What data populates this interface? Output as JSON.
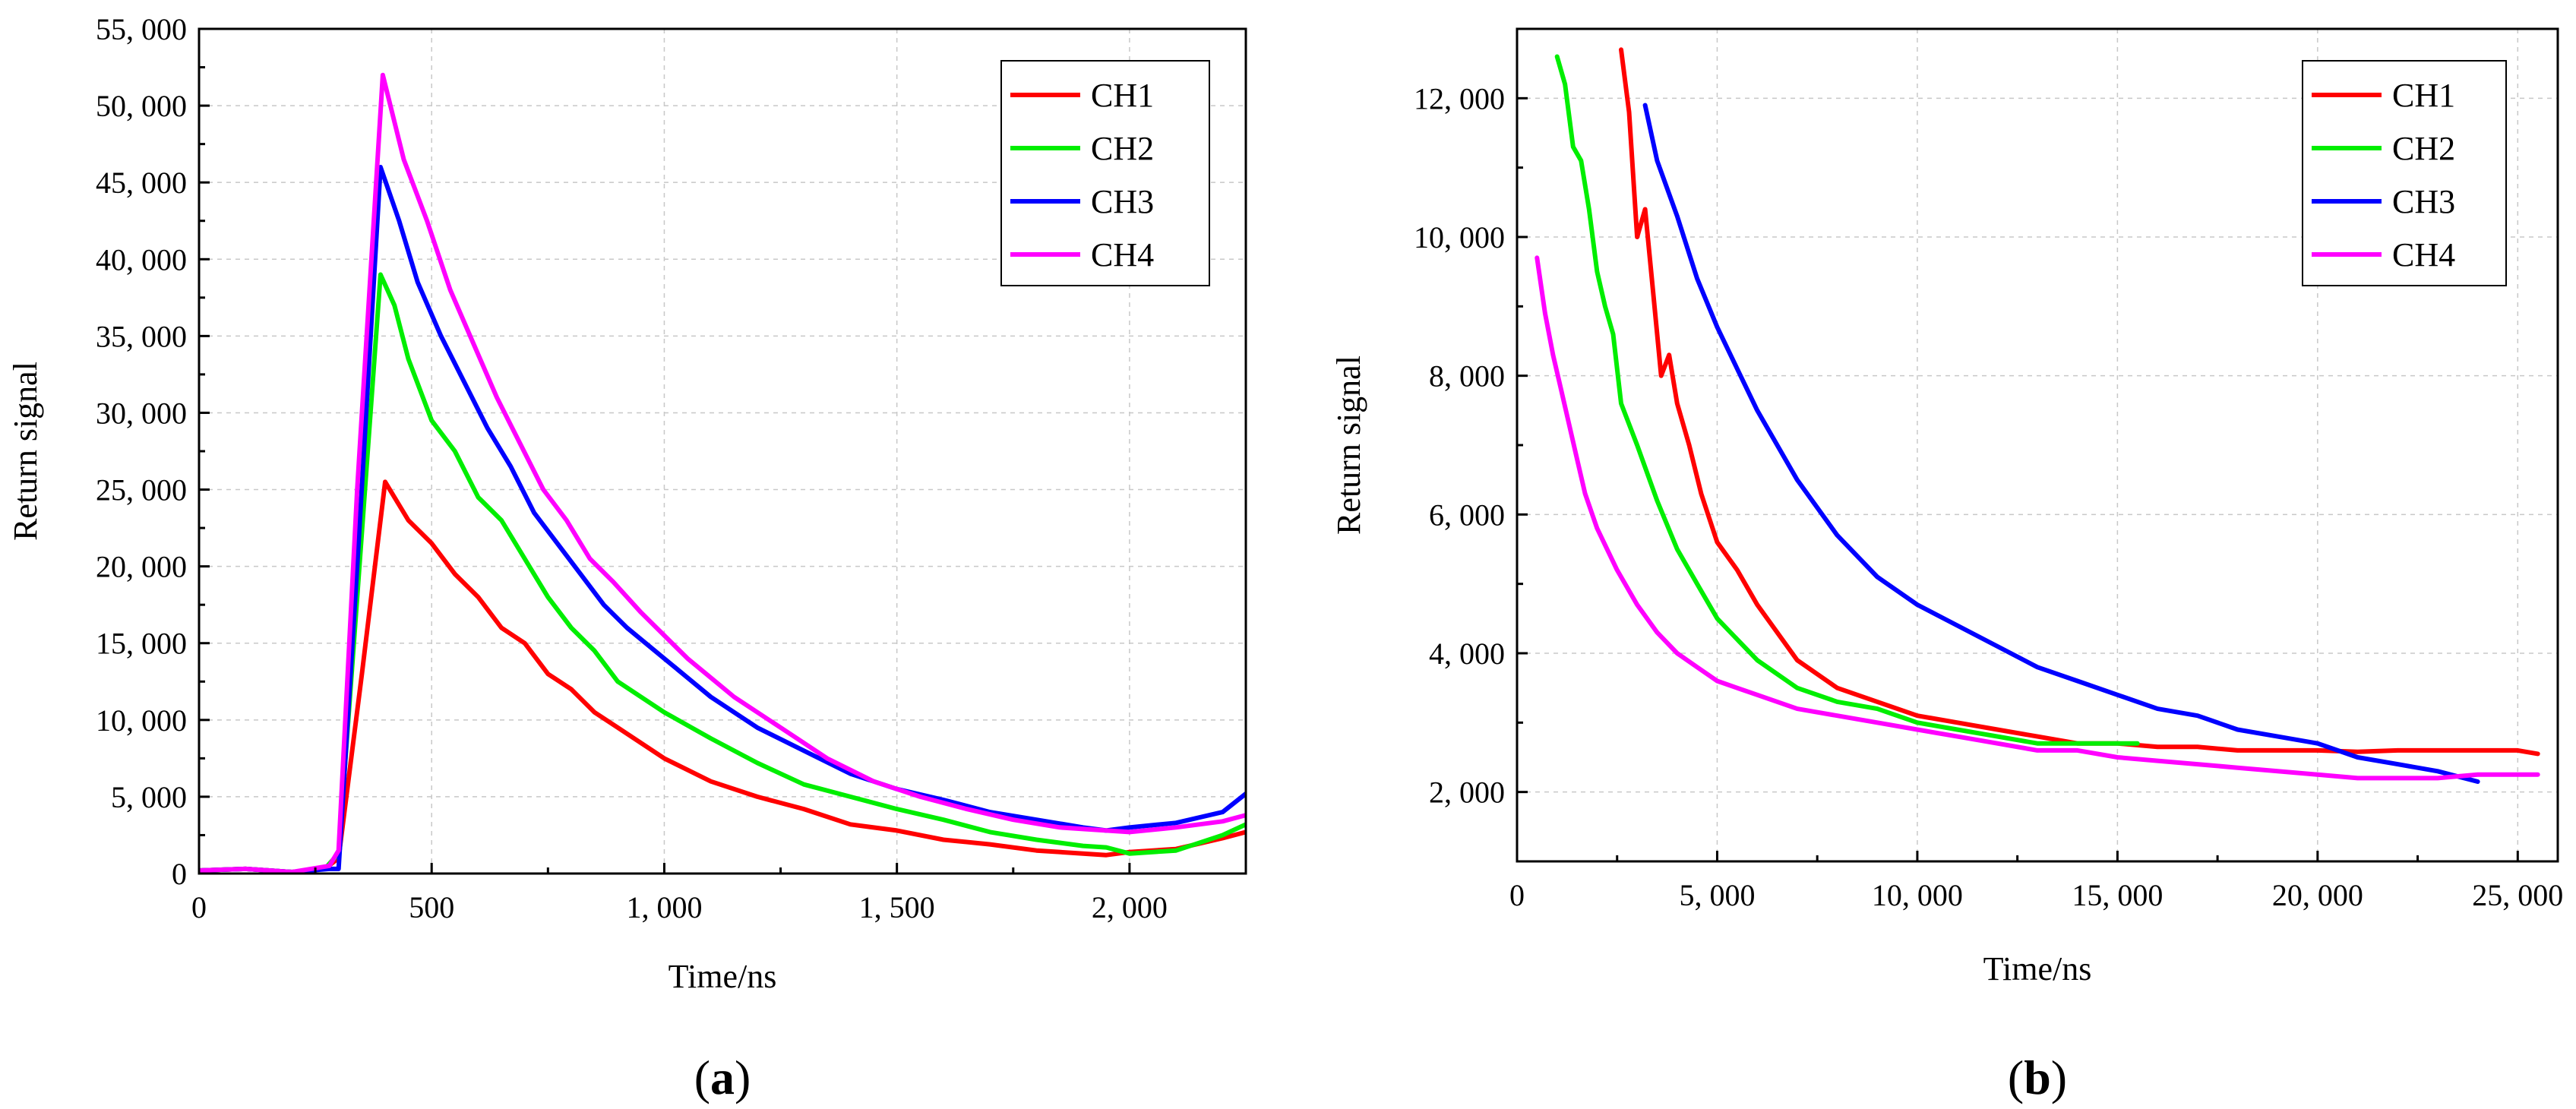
{
  "chart_data": [
    {
      "type": "line",
      "panel_label": "a",
      "title": "",
      "xlabel": "Time/ns",
      "ylabel": "Return signal",
      "xlim": [
        0,
        2250
      ],
      "ylim": [
        0,
        55000
      ],
      "xticks": [
        0,
        500,
        1000,
        1500,
        2000
      ],
      "xtick_labels": [
        "0",
        "500",
        "1, 000",
        "1, 500",
        "2, 000"
      ],
      "yticks": [
        0,
        5000,
        10000,
        15000,
        20000,
        25000,
        30000,
        35000,
        40000,
        45000,
        50000,
        55000
      ],
      "ytick_labels": [
        "0",
        "5, 000",
        "10, 000",
        "15, 000",
        "20, 000",
        "25, 000",
        "30, 000",
        "35, 000",
        "40, 000",
        "45, 000",
        "50, 000",
        "55, 000"
      ],
      "grid": true,
      "legend_position": "top-right",
      "series": [
        {
          "name": "CH1",
          "color": "#ff0000",
          "x": [
            0,
            100,
            200,
            270,
            300,
            350,
            400,
            450,
            500,
            550,
            600,
            650,
            700,
            750,
            800,
            850,
            900,
            1000,
            1100,
            1200,
            1300,
            1400,
            1500,
            1600,
            1700,
            1800,
            1900,
            1950,
            2000,
            2100,
            2200,
            2250
          ],
          "y": [
            200,
            300,
            100,
            300,
            1000,
            13000,
            25500,
            23000,
            21500,
            19500,
            18000,
            16000,
            15000,
            13000,
            12000,
            10500,
            9500,
            7500,
            6000,
            5000,
            4200,
            3200,
            2800,
            2200,
            1900,
            1500,
            1300,
            1200,
            1400,
            1600,
            2300,
            2700
          ]
        },
        {
          "name": "CH2",
          "color": "#00ee00",
          "x": [
            0,
            100,
            200,
            270,
            300,
            340,
            390,
            420,
            450,
            500,
            550,
            600,
            650,
            700,
            750,
            800,
            850,
            900,
            1000,
            1100,
            1200,
            1300,
            1400,
            1500,
            1600,
            1700,
            1800,
            1900,
            1950,
            2000,
            2100,
            2200,
            2250
          ],
          "y": [
            200,
            300,
            100,
            300,
            1300,
            18000,
            39000,
            37000,
            33500,
            29500,
            27500,
            24500,
            23000,
            20500,
            18000,
            16000,
            14500,
            12500,
            10500,
            8800,
            7200,
            5800,
            5000,
            4200,
            3500,
            2700,
            2200,
            1800,
            1700,
            1300,
            1500,
            2500,
            3200
          ]
        },
        {
          "name": "CH3",
          "color": "#0000ff",
          "x": [
            0,
            100,
            200,
            280,
            300,
            340,
            390,
            430,
            470,
            520,
            570,
            620,
            670,
            720,
            770,
            820,
            870,
            920,
            1000,
            1100,
            1200,
            1300,
            1400,
            1500,
            1600,
            1700,
            1800,
            1900,
            1950,
            2000,
            2100,
            2200,
            2250
          ],
          "y": [
            200,
            300,
            100,
            300,
            300,
            20000,
            46000,
            42500,
            38500,
            35000,
            32000,
            29000,
            26500,
            23500,
            21500,
            19500,
            17500,
            16000,
            14000,
            11500,
            9500,
            8000,
            6500,
            5500,
            4800,
            4000,
            3500,
            3000,
            2800,
            3000,
            3300,
            4000,
            5200
          ]
        },
        {
          "name": "CH4",
          "color": "#ff00ff",
          "x": [
            0,
            100,
            200,
            280,
            300,
            340,
            395,
            440,
            490,
            540,
            590,
            640,
            690,
            740,
            790,
            840,
            890,
            950,
            1050,
            1150,
            1250,
            1350,
            1450,
            1550,
            1650,
            1750,
            1850,
            1950,
            2000,
            2100,
            2200,
            2250
          ],
          "y": [
            200,
            300,
            100,
            500,
            1500,
            25000,
            52000,
            46500,
            42500,
            38000,
            34500,
            31000,
            28000,
            25000,
            23000,
            20500,
            19000,
            17000,
            14000,
            11500,
            9500,
            7500,
            6000,
            5000,
            4200,
            3500,
            3000,
            2800,
            2700,
            3000,
            3400,
            3800
          ]
        }
      ]
    },
    {
      "type": "line",
      "panel_label": "b",
      "title": "",
      "xlabel": "Time/ns",
      "ylabel": "Return signal",
      "xlim": [
        0,
        26000
      ],
      "ylim": [
        1000,
        13000
      ],
      "xticks": [
        0,
        5000,
        10000,
        15000,
        20000,
        25000
      ],
      "xtick_labels": [
        "0",
        "5, 000",
        "10, 000",
        "15, 000",
        "20, 000",
        "25, 000"
      ],
      "yticks": [
        2000,
        4000,
        6000,
        8000,
        10000,
        12000
      ],
      "ytick_labels": [
        "2, 000",
        "4, 000",
        "6, 000",
        "8, 000",
        "10, 000",
        "12, 000"
      ],
      "grid": true,
      "legend_position": "top-right",
      "series": [
        {
          "name": "CH1",
          "color": "#ff0000",
          "x": [
            2600,
            2800,
            3000,
            3200,
            3400,
            3600,
            3800,
            4000,
            4300,
            4600,
            5000,
            5500,
            6000,
            7000,
            8000,
            9000,
            9500,
            10000,
            11000,
            12000,
            13000,
            14000,
            15000,
            16000,
            17000,
            18000,
            19000,
            20000,
            21000,
            22000,
            23000,
            24000,
            25000,
            25500
          ],
          "y": [
            12700,
            11800,
            10000,
            10400,
            9200,
            8000,
            8300,
            7600,
            7000,
            6300,
            5600,
            5200,
            4700,
            3900,
            3500,
            3300,
            3200,
            3100,
            3000,
            2900,
            2800,
            2700,
            2700,
            2650,
            2650,
            2600,
            2600,
            2600,
            2580,
            2600,
            2600,
            2600,
            2600,
            2550
          ]
        },
        {
          "name": "CH2",
          "color": "#00ee00",
          "x": [
            1000,
            1200,
            1400,
            1600,
            1800,
            2000,
            2200,
            2400,
            2600,
            3000,
            3500,
            4000,
            4500,
            5000,
            5500,
            6000,
            7000,
            8000,
            9000,
            10000,
            11000,
            12000,
            13000,
            14000,
            15000,
            15500
          ],
          "y": [
            12600,
            12200,
            11300,
            11100,
            10400,
            9500,
            9000,
            8600,
            7600,
            7000,
            6200,
            5500,
            5000,
            4500,
            4200,
            3900,
            3500,
            3300,
            3200,
            3000,
            2900,
            2800,
            2700,
            2700,
            2700,
            2700
          ]
        },
        {
          "name": "CH3",
          "color": "#0000ff",
          "x": [
            3200,
            3500,
            4000,
            4500,
            5000,
            5500,
            6000,
            7000,
            8000,
            9000,
            10000,
            11000,
            12000,
            13000,
            14000,
            15000,
            16000,
            17000,
            18000,
            19000,
            20000,
            21000,
            22000,
            23000,
            24000
          ],
          "y": [
            11900,
            11100,
            10300,
            9400,
            8700,
            8100,
            7500,
            6500,
            5700,
            5100,
            4700,
            4400,
            4100,
            3800,
            3600,
            3400,
            3200,
            3100,
            2900,
            2800,
            2700,
            2500,
            2400,
            2300,
            2150
          ]
        },
        {
          "name": "CH4",
          "color": "#ff00ff",
          "x": [
            500,
            700,
            900,
            1100,
            1300,
            1500,
            1700,
            2000,
            2500,
            3000,
            3500,
            4000,
            4500,
            5000,
            5500,
            6000,
            7000,
            8000,
            9000,
            10000,
            11000,
            12000,
            13000,
            14000,
            15000,
            16000,
            17000,
            18000,
            19000,
            20000,
            21000,
            22000,
            23000,
            24000,
            25000,
            25500
          ],
          "y": [
            9700,
            8900,
            8300,
            7800,
            7300,
            6800,
            6300,
            5800,
            5200,
            4700,
            4300,
            4000,
            3800,
            3600,
            3500,
            3400,
            3200,
            3100,
            3000,
            2900,
            2800,
            2700,
            2600,
            2600,
            2500,
            2450,
            2400,
            2350,
            2300,
            2250,
            2200,
            2200,
            2200,
            2250,
            2250,
            2250
          ]
        }
      ]
    }
  ]
}
